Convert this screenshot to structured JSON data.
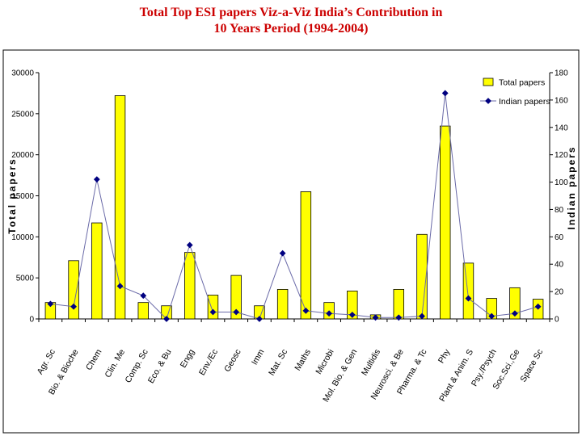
{
  "chart_data": {
    "type": "bar",
    "title_line1": "Total Top ESI papers Viz-a-Viz India’s Contribution in",
    "title_line2": "10 Years Period (1994-2004)",
    "categories": [
      "Agr. Sc",
      "Bio. & Bioche",
      "Chem",
      "Clin. Me",
      "Comp. Sc",
      "Eco. & Bu",
      "Engg",
      "Env./Ec",
      "Geosc",
      "Imm",
      "Mat. Sc",
      "Maths",
      "Microbi",
      "Mol. Bio. & Gen",
      "Multidis",
      "Neurosci. & Be",
      "Pharma. & Tc",
      "Phy",
      "Plant & Anim. S",
      "Psy./Psych",
      "Soc.Sci.,Ge",
      "Space Sc"
    ],
    "ylabel": "Total papers",
    "y2label": "Indian papers",
    "ylim": [
      0,
      30000
    ],
    "y2lim": [
      0,
      180
    ],
    "yticks": [
      "0",
      "5000",
      "10000",
      "15000",
      "20000",
      "25000",
      "30000"
    ],
    "y2ticks": [
      "0",
      "20",
      "40",
      "60",
      "80",
      "100",
      "120",
      "140",
      "160",
      "180"
    ],
    "legend_position": "top-right",
    "series": [
      {
        "name": "Total papers",
        "type": "bar",
        "axis": "left",
        "color": "#ffff00",
        "values": [
          2000,
          7100,
          11700,
          27200,
          2000,
          1600,
          8100,
          2900,
          5300,
          1600,
          3600,
          15500,
          2000,
          3400,
          500,
          3600,
          10300,
          23500,
          6800,
          2500,
          3800,
          2400
        ]
      },
      {
        "name": "Indian papers",
        "type": "line",
        "axis": "right",
        "color": "#000080",
        "values": [
          11,
          9,
          102,
          24,
          17,
          0,
          54,
          5,
          5,
          0,
          48,
          6,
          4,
          3,
          1,
          1,
          2,
          165,
          15,
          2,
          4,
          9
        ]
      }
    ]
  }
}
